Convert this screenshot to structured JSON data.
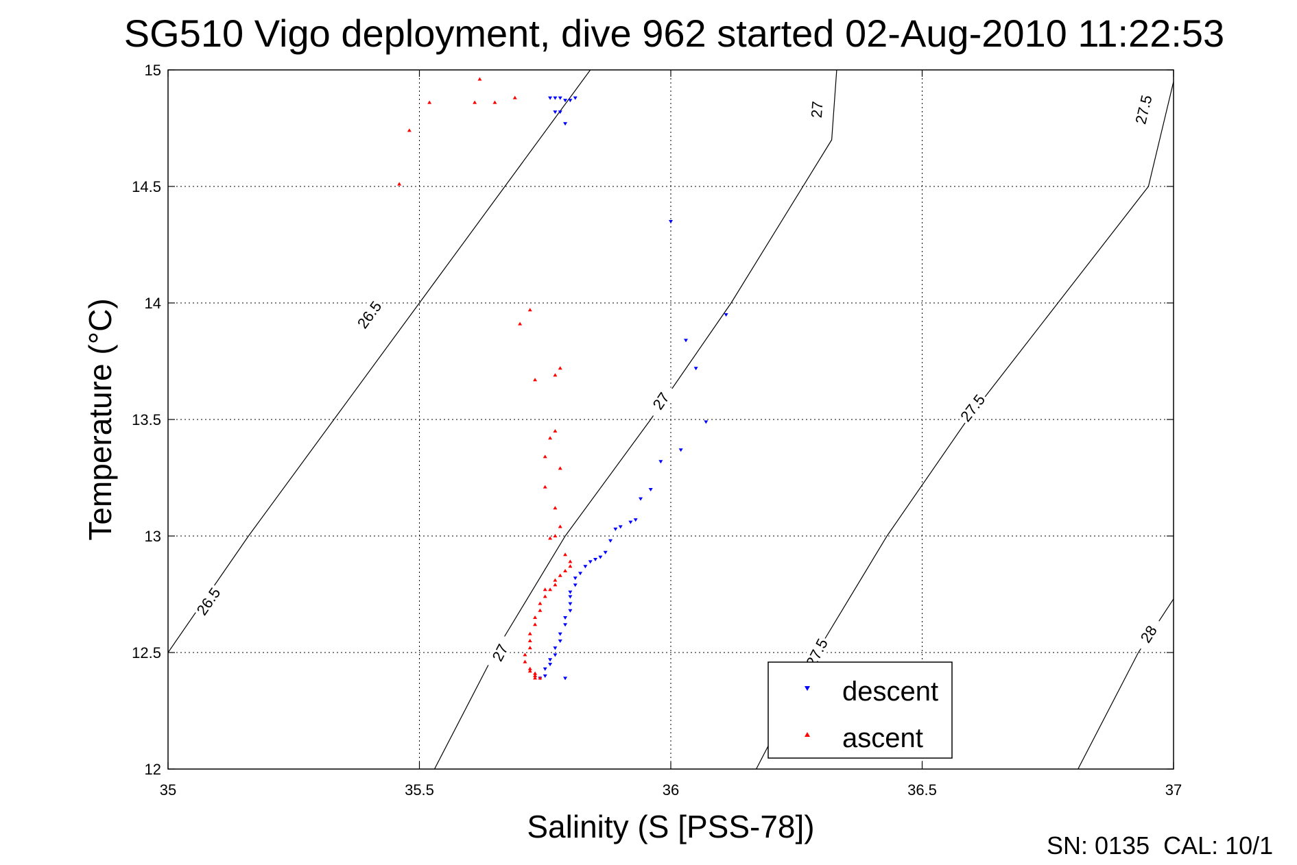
{
  "chart_data": {
    "type": "scatter",
    "title": "SG510 Vigo deployment, dive 962 started 02-Aug-2010 11:22:53",
    "xlabel": "Salinity (S [PSS-78])",
    "ylabel": "Temperature (°C)",
    "xlim": [
      35,
      37
    ],
    "ylim": [
      12,
      15
    ],
    "xticks": [
      "35",
      "35.5",
      "36",
      "36.5",
      "37"
    ],
    "yticks": [
      "12",
      "12.5",
      "13",
      "13.5",
      "14",
      "14.5",
      "15"
    ],
    "grid": true,
    "legend_position": "bottom-right",
    "footer": "SN: 0135  CAL: 10/1",
    "series": [
      {
        "name": "descent",
        "color": "#0000ff",
        "marker": "triangle-down",
        "points": [
          [
            35.76,
            14.88
          ],
          [
            35.77,
            14.88
          ],
          [
            35.78,
            14.88
          ],
          [
            35.79,
            14.87
          ],
          [
            35.8,
            14.87
          ],
          [
            35.81,
            14.88
          ],
          [
            35.77,
            14.82
          ],
          [
            35.78,
            14.82
          ],
          [
            35.79,
            14.77
          ],
          [
            36.0,
            14.35
          ],
          [
            36.11,
            13.95
          ],
          [
            36.03,
            13.84
          ],
          [
            36.05,
            13.72
          ],
          [
            36.07,
            13.49
          ],
          [
            36.02,
            13.37
          ],
          [
            35.98,
            13.32
          ],
          [
            35.96,
            13.2
          ],
          [
            35.94,
            13.16
          ],
          [
            35.92,
            13.06
          ],
          [
            35.9,
            13.04
          ],
          [
            35.89,
            13.03
          ],
          [
            35.93,
            13.07
          ],
          [
            35.88,
            12.98
          ],
          [
            35.87,
            12.93
          ],
          [
            35.86,
            12.91
          ],
          [
            35.85,
            12.9
          ],
          [
            35.84,
            12.89
          ],
          [
            35.83,
            12.87
          ],
          [
            35.82,
            12.84
          ],
          [
            35.81,
            12.82
          ],
          [
            35.81,
            12.79
          ],
          [
            35.8,
            12.76
          ],
          [
            35.8,
            12.74
          ],
          [
            35.8,
            12.71
          ],
          [
            35.8,
            12.68
          ],
          [
            35.79,
            12.65
          ],
          [
            35.79,
            12.62
          ],
          [
            35.78,
            12.58
          ],
          [
            35.78,
            12.55
          ],
          [
            35.77,
            12.52
          ],
          [
            35.77,
            12.49
          ],
          [
            35.76,
            12.47
          ],
          [
            35.76,
            12.45
          ],
          [
            35.75,
            12.43
          ],
          [
            35.75,
            12.4
          ],
          [
            35.74,
            12.39
          ],
          [
            35.79,
            12.39
          ]
        ]
      },
      {
        "name": "ascent",
        "color": "#ff0000",
        "marker": "triangle-up",
        "points": [
          [
            35.62,
            14.96
          ],
          [
            35.52,
            14.86
          ],
          [
            35.61,
            14.86
          ],
          [
            35.65,
            14.86
          ],
          [
            35.69,
            14.88
          ],
          [
            35.48,
            14.74
          ],
          [
            35.46,
            14.51
          ],
          [
            35.72,
            13.97
          ],
          [
            35.7,
            13.91
          ],
          [
            35.78,
            13.72
          ],
          [
            35.77,
            13.69
          ],
          [
            35.73,
            13.67
          ],
          [
            35.77,
            13.45
          ],
          [
            35.76,
            13.42
          ],
          [
            35.75,
            13.34
          ],
          [
            35.78,
            13.29
          ],
          [
            35.75,
            13.21
          ],
          [
            35.77,
            13.12
          ],
          [
            35.78,
            13.04
          ],
          [
            35.77,
            13.0
          ],
          [
            35.76,
            12.99
          ],
          [
            35.79,
            12.92
          ],
          [
            35.8,
            12.89
          ],
          [
            35.8,
            12.87
          ],
          [
            35.79,
            12.85
          ],
          [
            35.78,
            12.83
          ],
          [
            35.77,
            12.81
          ],
          [
            35.77,
            12.79
          ],
          [
            35.76,
            12.77
          ],
          [
            35.75,
            12.77
          ],
          [
            35.75,
            12.74
          ],
          [
            35.74,
            12.71
          ],
          [
            35.74,
            12.68
          ],
          [
            35.73,
            12.65
          ],
          [
            35.73,
            12.62
          ],
          [
            35.72,
            12.58
          ],
          [
            35.72,
            12.55
          ],
          [
            35.72,
            12.52
          ],
          [
            35.71,
            12.49
          ],
          [
            35.71,
            12.46
          ],
          [
            35.72,
            12.43
          ],
          [
            35.73,
            12.41
          ],
          [
            35.73,
            12.4
          ],
          [
            35.73,
            12.39
          ],
          [
            35.74,
            12.39
          ],
          [
            35.72,
            12.42
          ]
        ]
      }
    ],
    "contours": [
      {
        "label": "26.5",
        "points": [
          [
            35.0,
            12.5
          ],
          [
            35.16,
            13.0
          ],
          [
            35.33,
            13.5
          ],
          [
            35.5,
            14.0
          ],
          [
            35.67,
            14.5
          ],
          [
            35.84,
            15.0
          ]
        ],
        "label_positions": [
          [
            35.08,
            12.72
          ],
          [
            35.4,
            13.95
          ]
        ]
      },
      {
        "label": "26.5",
        "points": [
          [
            34.7,
            14.4
          ],
          [
            35.0,
            14.87
          ]
        ],
        "label_positions": []
      },
      {
        "label": "27",
        "points": [
          [
            35.53,
            12.0
          ],
          [
            35.65,
            12.5
          ],
          [
            35.79,
            13.0
          ],
          [
            35.96,
            13.5
          ],
          [
            36.12,
            14.0
          ],
          [
            36.32,
            14.7
          ],
          [
            36.33,
            15.0
          ]
        ],
        "label_positions": [
          [
            35.66,
            12.5
          ],
          [
            35.98,
            13.58
          ],
          [
            36.29,
            14.83
          ]
        ]
      },
      {
        "label": "27.5",
        "points": [
          [
            36.17,
            12.0
          ],
          [
            36.29,
            12.5
          ],
          [
            36.43,
            13.0
          ],
          [
            36.59,
            13.5
          ],
          [
            36.77,
            14.0
          ],
          [
            36.95,
            14.5
          ],
          [
            37.0,
            14.95
          ]
        ],
        "label_positions": [
          [
            36.29,
            12.5
          ],
          [
            36.6,
            13.55
          ],
          [
            36.94,
            14.83
          ]
        ]
      },
      {
        "label": "28",
        "points": [
          [
            36.81,
            12.0
          ],
          [
            36.93,
            12.5
          ],
          [
            37.0,
            12.73
          ]
        ],
        "label_positions": [
          [
            36.95,
            12.58
          ]
        ]
      }
    ]
  }
}
